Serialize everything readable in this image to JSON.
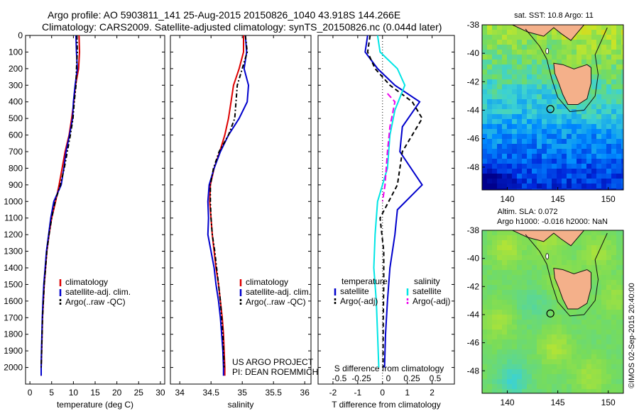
{
  "header": {
    "line1": "Argo profile: AO 5903811_141 25-Aug-2015 20150826_1040 43.918S 144.266E",
    "line2": "Climatology: CARS2009. Satellite-adjusted climatology: synTS_20150826.nc (0.044d later)"
  },
  "credit": {
    "project": "US ARGO PROJECT",
    "pi": "PI: DEAN ROEMMICH"
  },
  "watermark": "©IMOS 02-Sep-2015 20:40:00",
  "colors": {
    "climatology": "#dd0000",
    "satellite": "#0000cc",
    "argo": "#000000",
    "s_satellite": "#00e5e5",
    "s_argo": "#ee00ee",
    "land": "#f4b08a",
    "coast": "#111111"
  },
  "chart_data": [
    {
      "type": "line",
      "xlabel": "temperature (deg C)",
      "ylabel": "",
      "xlim": [
        -1,
        31
      ],
      "ylim": [
        2100,
        0
      ],
      "xticks": [
        "0",
        "5",
        "10",
        "15",
        "20",
        "25",
        "30"
      ],
      "yticks": [
        "0",
        "100",
        "200",
        "300",
        "400",
        "500",
        "600",
        "700",
        "800",
        "900",
        "1000",
        "1100",
        "1200",
        "1300",
        "1400",
        "1500",
        "1600",
        "1700",
        "1800",
        "1900",
        "2000"
      ],
      "legend": [
        "climatology",
        "satellite-adj. clim.",
        "Argo(..raw -QC)"
      ],
      "legend_position": "lower-center",
      "series": [
        {
          "name": "climatology",
          "color": "#dd0000",
          "dash": "",
          "points": [
            [
              11.3,
              0
            ],
            [
              11.4,
              100
            ],
            [
              11.2,
              200
            ],
            [
              10.5,
              300
            ],
            [
              10.1,
              400
            ],
            [
              9.6,
              500
            ],
            [
              9.0,
              600
            ],
            [
              8.1,
              700
            ],
            [
              7.4,
              800
            ],
            [
              6.7,
              900
            ],
            [
              5.9,
              1000
            ],
            [
              5.0,
              1100
            ],
            [
              4.4,
              1200
            ],
            [
              3.9,
              1300
            ],
            [
              3.6,
              1400
            ],
            [
              3.3,
              1500
            ],
            [
              3.1,
              1600
            ],
            [
              2.9,
              1700
            ],
            [
              2.8,
              1800
            ],
            [
              2.7,
              1900
            ],
            [
              2.6,
              2000
            ],
            [
              2.6,
              2050
            ]
          ]
        },
        {
          "name": "satellite-adj. clim.",
          "color": "#0000cc",
          "dash": "",
          "points": [
            [
              10.6,
              0
            ],
            [
              10.7,
              100
            ],
            [
              10.9,
              200
            ],
            [
              10.4,
              300
            ],
            [
              10.0,
              400
            ],
            [
              9.8,
              500
            ],
            [
              9.1,
              600
            ],
            [
              8.3,
              700
            ],
            [
              7.8,
              800
            ],
            [
              7.2,
              900
            ],
            [
              5.5,
              1000
            ],
            [
              4.8,
              1100
            ],
            [
              4.3,
              1200
            ],
            [
              3.8,
              1300
            ],
            [
              3.5,
              1400
            ],
            [
              3.2,
              1500
            ],
            [
              3.0,
              1600
            ],
            [
              2.85,
              1700
            ],
            [
              2.75,
              1800
            ],
            [
              2.65,
              1900
            ],
            [
              2.6,
              2000
            ],
            [
              2.6,
              2050
            ]
          ]
        },
        {
          "name": "Argo(..raw -QC)",
          "color": "#000000",
          "dash": "6,3,2,3",
          "points": [
            [
              10.8,
              0
            ],
            [
              10.9,
              100
            ],
            [
              10.7,
              200
            ],
            [
              10.6,
              300
            ],
            [
              10.2,
              400
            ],
            [
              9.9,
              500
            ],
            [
              9.3,
              600
            ],
            [
              8.6,
              700
            ],
            [
              7.9,
              800
            ],
            [
              7.0,
              900
            ],
            [
              5.8,
              1000
            ],
            [
              5.0,
              1100
            ],
            [
              4.4,
              1200
            ],
            [
              3.9,
              1300
            ],
            [
              3.6,
              1400
            ],
            [
              3.3,
              1500
            ],
            [
              3.1,
              1600
            ],
            [
              2.9,
              1700
            ],
            [
              2.8,
              1800
            ],
            [
              2.7,
              1900
            ],
            [
              2.6,
              2000
            ]
          ]
        }
      ]
    },
    {
      "type": "line",
      "xlabel": "salinity",
      "ylabel": "",
      "xlim": [
        33.85,
        36.1
      ],
      "ylim": [
        2100,
        0
      ],
      "xticks": [
        "34",
        "34.5",
        "35",
        "35.5",
        "36"
      ],
      "legend": [
        "climatology",
        "satellite-adj. clim.",
        "Argo(..raw -QC)"
      ],
      "legend_position": "lower-center",
      "series": [
        {
          "name": "climatology",
          "color": "#dd0000",
          "dash": "",
          "points": [
            [
              35.02,
              0
            ],
            [
              35.02,
              100
            ],
            [
              34.95,
              200
            ],
            [
              34.86,
              300
            ],
            [
              34.82,
              400
            ],
            [
              34.78,
              500
            ],
            [
              34.72,
              600
            ],
            [
              34.64,
              700
            ],
            [
              34.55,
              800
            ],
            [
              34.49,
              900
            ],
            [
              34.48,
              1000
            ],
            [
              34.5,
              1100
            ],
            [
              34.52,
              1200
            ],
            [
              34.55,
              1300
            ],
            [
              34.58,
              1400
            ],
            [
              34.62,
              1500
            ],
            [
              34.65,
              1600
            ],
            [
              34.68,
              1700
            ],
            [
              34.7,
              1800
            ],
            [
              34.71,
              1900
            ],
            [
              34.72,
              2000
            ],
            [
              34.72,
              2050
            ]
          ]
        },
        {
          "name": "satellite-adj. clim.",
          "color": "#0000cc",
          "dash": "",
          "points": [
            [
              35.05,
              0
            ],
            [
              35.07,
              100
            ],
            [
              35.03,
              200
            ],
            [
              35.1,
              300
            ],
            [
              35.08,
              400
            ],
            [
              34.95,
              500
            ],
            [
              34.78,
              600
            ],
            [
              34.65,
              700
            ],
            [
              34.55,
              800
            ],
            [
              34.47,
              900
            ],
            [
              34.45,
              1000
            ],
            [
              34.46,
              1100
            ],
            [
              34.45,
              1200
            ],
            [
              34.5,
              1300
            ],
            [
              34.55,
              1400
            ],
            [
              34.58,
              1500
            ],
            [
              34.62,
              1600
            ],
            [
              34.65,
              1700
            ],
            [
              34.67,
              1800
            ],
            [
              34.69,
              1900
            ],
            [
              34.7,
              2000
            ],
            [
              34.7,
              2050
            ]
          ]
        },
        {
          "name": "Argo(..raw -QC)",
          "color": "#000000",
          "dash": "6,3,2,3",
          "points": [
            [
              35.05,
              0
            ],
            [
              35.08,
              100
            ],
            [
              35.0,
              200
            ],
            [
              34.92,
              300
            ],
            [
              34.9,
              400
            ],
            [
              34.88,
              500
            ],
            [
              34.78,
              600
            ],
            [
              34.63,
              700
            ],
            [
              34.54,
              800
            ],
            [
              34.49,
              900
            ],
            [
              34.49,
              1000
            ],
            [
              34.5,
              1100
            ],
            [
              34.52,
              1200
            ],
            [
              34.56,
              1300
            ],
            [
              34.59,
              1400
            ],
            [
              34.62,
              1500
            ],
            [
              34.65,
              1600
            ],
            [
              34.67,
              1700
            ],
            [
              34.69,
              1800
            ],
            [
              34.7,
              1900
            ],
            [
              34.71,
              2000
            ]
          ]
        }
      ]
    },
    {
      "type": "line",
      "xlabel": "T difference from climatology",
      "top_label": "S difference from climatology",
      "xlim": [
        -2.6,
        2.9
      ],
      "ylim": [
        2100,
        0
      ],
      "xticks": [
        "-2",
        "-1",
        "0",
        "1",
        "2"
      ],
      "sticks": [
        "-0.5",
        "-0.25",
        "0",
        "0.25",
        "0.5"
      ],
      "legend_temperature": {
        "title": "temperature",
        "items": [
          "satellite",
          "Argo(-adj)"
        ]
      },
      "legend_salinity": {
        "title": "salinity",
        "items": [
          "satellite",
          "Argo(-adj)"
        ]
      },
      "series": [
        {
          "name": "satellite",
          "group": "temperature",
          "color": "#0000cc",
          "dash": "",
          "points": [
            [
              -0.6,
              0
            ],
            [
              -0.7,
              100
            ],
            [
              -0.2,
              200
            ],
            [
              0.5,
              300
            ],
            [
              1.5,
              400
            ],
            [
              0.8,
              550
            ],
            [
              0.7,
              700
            ],
            [
              1.6,
              900
            ],
            [
              0.6,
              1050
            ],
            [
              0.5,
              1200
            ],
            [
              0.3,
              1400
            ],
            [
              0.2,
              1600
            ],
            [
              0.12,
              1800
            ],
            [
              0.08,
              2000
            ]
          ]
        },
        {
          "name": "Argo(-adj)",
          "group": "temperature",
          "color": "#000000",
          "dash": "6,4",
          "points": [
            [
              -0.5,
              0
            ],
            [
              -0.6,
              100
            ],
            [
              -0.3,
              200
            ],
            [
              0.3,
              300
            ],
            [
              1.2,
              400
            ],
            [
              1.6,
              500
            ],
            [
              0.8,
              700
            ],
            [
              0.6,
              900
            ],
            [
              -0.1,
              1100
            ],
            [
              0.05,
              1300
            ],
            [
              0.05,
              1500
            ],
            [
              0.03,
              1700
            ],
            [
              0.02,
              2000
            ]
          ]
        },
        {
          "name": "satellite",
          "group": "salinity",
          "color": "#00e5e5",
          "dash": "",
          "points": [
            [
              -0.2,
              0
            ],
            [
              -0.1,
              100
            ],
            [
              0.6,
              200
            ],
            [
              0.9,
              300
            ],
            [
              0.5,
              450
            ],
            [
              0.3,
              600
            ],
            [
              0.2,
              800
            ],
            [
              -0.2,
              1000
            ],
            [
              -0.3,
              1200
            ],
            [
              -0.35,
              1400
            ],
            [
              -0.25,
              1600
            ],
            [
              -0.2,
              1800
            ],
            [
              -0.15,
              2000
            ]
          ]
        },
        {
          "name": "Argo(-adj)",
          "group": "salinity",
          "color": "#ee00ee",
          "dash": "8,4",
          "points": [
            [
              0.2,
              350
            ],
            [
              0.5,
              400
            ],
            [
              0.3,
              550
            ],
            [
              0.2,
              700
            ],
            [
              0.1,
              900
            ],
            [
              0.0,
              1000
            ]
          ]
        }
      ]
    },
    {
      "type": "heatmap",
      "title": "sat. SST: 10.8 Argo: 11",
      "xticks": [
        "140",
        "145",
        "150"
      ],
      "yticks": [
        "-38",
        "-40",
        "-42",
        "-44",
        "-46",
        "-48"
      ],
      "xlim": [
        137.5,
        151.5
      ],
      "ylim": [
        -49.6,
        -38
      ],
      "argo_marker": [
        144.266,
        -43.918
      ]
    },
    {
      "type": "heatmap",
      "title_line1": "Altim. SLA: 0.072",
      "title_line2": "Argo h1000: -0.016 h2000: NaN",
      "xticks": [
        "140",
        "145",
        "150"
      ],
      "yticks": [
        "-38",
        "-40",
        "-42",
        "-44",
        "-46",
        "-48"
      ],
      "xlim": [
        137.5,
        151.5
      ],
      "ylim": [
        -49.6,
        -38
      ],
      "argo_marker": [
        144.266,
        -43.918
      ]
    }
  ]
}
